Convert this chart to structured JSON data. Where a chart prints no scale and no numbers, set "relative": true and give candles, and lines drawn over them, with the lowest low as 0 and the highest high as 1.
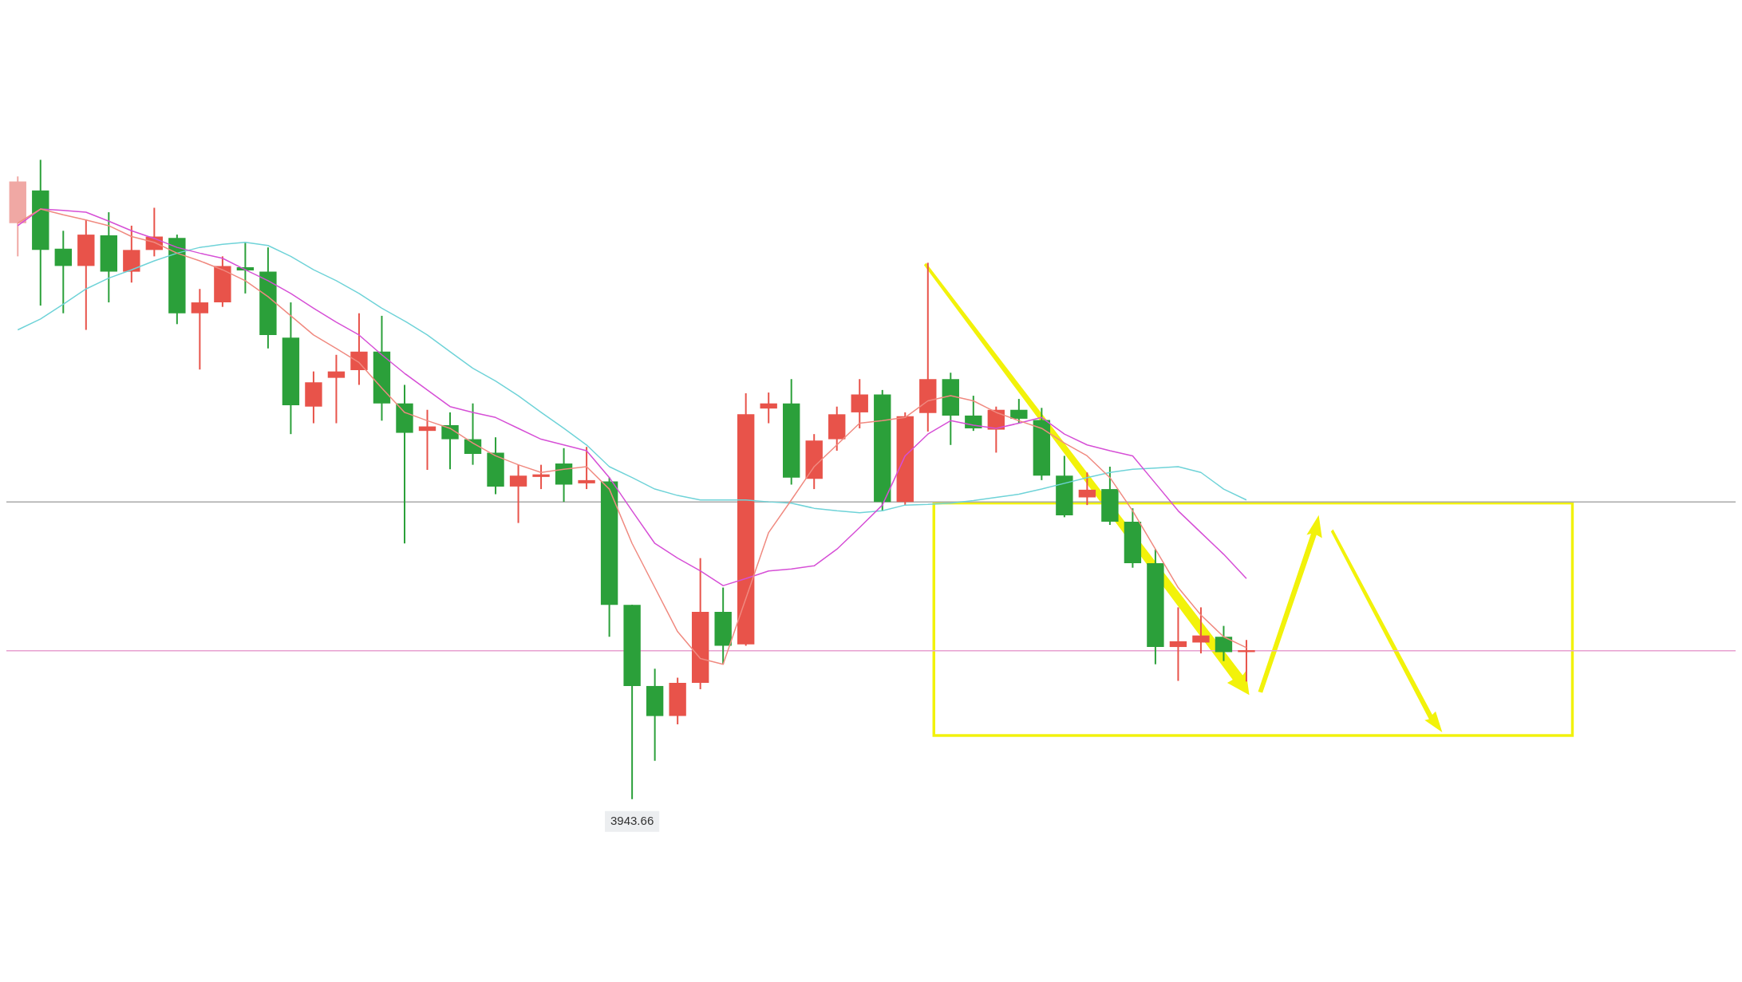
{
  "chart_data": {
    "type": "candlestick",
    "relative": true,
    "categories": [
      null,
      null,
      null,
      null,
      null,
      null,
      null,
      null,
      null,
      null,
      null,
      null,
      null,
      null,
      null,
      null,
      null,
      null,
      null,
      null,
      null,
      null,
      null,
      null,
      null,
      null,
      null,
      null,
      null,
      null,
      null,
      null,
      null,
      null,
      null,
      null,
      null,
      null,
      null,
      null,
      null,
      null,
      null,
      null,
      null,
      null,
      null,
      null,
      null,
      null,
      null,
      null,
      null,
      null,
      null
    ],
    "ohlc": [
      [
        0.901,
        0.974,
        0.849,
        0.966
      ],
      [
        0.952,
        1,
        0.772,
        0.859
      ],
      [
        0.861,
        0.889,
        0.76,
        0.834
      ],
      [
        0.834,
        0.906,
        0.734,
        0.883
      ],
      [
        0.882,
        0.918,
        0.777,
        0.825
      ],
      [
        0.825,
        0.897,
        0.808,
        0.859
      ],
      [
        0.859,
        0.925,
        0.849,
        0.88
      ],
      [
        0.878,
        0.883,
        0.743,
        0.76
      ],
      [
        0.76,
        0.798,
        0.672,
        0.777
      ],
      [
        0.777,
        0.849,
        0.77,
        0.834
      ],
      [
        0.832,
        0.871,
        0.791,
        0.827
      ],
      [
        0.825,
        0.863,
        0.705,
        0.726
      ],
      [
        0.722,
        0.777,
        0.571,
        0.616
      ],
      [
        0.614,
        0.669,
        0.588,
        0.652
      ],
      [
        0.659,
        0.695,
        0.588,
        0.669
      ],
      [
        0.671,
        0.76,
        0.648,
        0.7
      ],
      [
        0.7,
        0.756,
        0.592,
        0.619
      ],
      [
        0.619,
        0.648,
        0.4,
        0.573
      ],
      [
        0.576,
        0.609,
        0.515,
        0.583
      ],
      [
        0.585,
        0.605,
        0.516,
        0.563
      ],
      [
        0.563,
        0.619,
        0.523,
        0.54
      ],
      [
        0.542,
        0.566,
        0.477,
        0.489
      ],
      [
        0.489,
        0.523,
        0.432,
        0.506
      ],
      [
        0.504,
        0.523,
        0.485,
        0.508
      ],
      [
        0.525,
        0.549,
        0.465,
        0.492
      ],
      [
        0.494,
        0.551,
        0.485,
        0.499
      ],
      [
        0.497,
        0.503,
        0.254,
        0.304
      ],
      [
        0.304,
        0.304,
        0,
        0.177
      ],
      [
        0.177,
        0.204,
        0.06,
        0.13
      ],
      [
        0.13,
        0.19,
        0.117,
        0.182
      ],
      [
        0.182,
        0.377,
        0.172,
        0.293
      ],
      [
        0.293,
        0.331,
        0.211,
        0.24
      ],
      [
        0.242,
        0.635,
        0.24,
        0.602
      ],
      [
        0.611,
        0.636,
        0.588,
        0.619
      ],
      [
        0.619,
        0.657,
        0.492,
        0.503
      ],
      [
        0.501,
        0.571,
        0.485,
        0.561
      ],
      [
        0.563,
        0.614,
        0.545,
        0.602
      ],
      [
        0.605,
        0.657,
        0.58,
        0.633
      ],
      [
        0.633,
        0.64,
        0.451,
        0.465
      ],
      [
        0.465,
        0.605,
        0.46,
        0.599
      ],
      [
        0.604,
        0.839,
        0.575,
        0.657
      ],
      [
        0.657,
        0.667,
        0.554,
        0.6
      ],
      [
        0.6,
        0.631,
        0.576,
        0.58
      ],
      [
        0.578,
        0.614,
        0.542,
        0.609
      ],
      [
        0.609,
        0.626,
        0.588,
        0.595
      ],
      [
        0.593,
        0.612,
        0.499,
        0.506
      ],
      [
        0.506,
        0.537,
        0.441,
        0.444
      ],
      [
        0.472,
        0.511,
        0.46,
        0.484
      ],
      [
        0.485,
        0.52,
        0.429,
        0.434
      ],
      [
        0.434,
        0.455,
        0.362,
        0.369
      ],
      [
        0.369,
        0.391,
        0.211,
        0.238
      ],
      [
        0.238,
        0.3,
        0.185,
        0.247
      ],
      [
        0.245,
        0.3,
        0.228,
        0.256
      ],
      [
        0.254,
        0.271,
        0.216,
        0.23
      ],
      [
        0.23,
        0.249,
        0.184,
        0.233
      ]
    ],
    "colors": [
      "#f0a8a4",
      "#2ba03a",
      "#2ba03a",
      "#e8534a",
      "#2ba03a",
      "#e8534a",
      "#e8534a",
      "#2ba03a",
      "#e8534a",
      "#e8534a",
      "#2ba03a",
      "#2ba03a",
      "#2ba03a",
      "#e8534a",
      "#e8534a",
      "#e8534a",
      "#2ba03a",
      "#2ba03a",
      "#e8534a",
      "#2ba03a",
      "#2ba03a",
      "#2ba03a",
      "#e8534a",
      "#e8534a",
      "#2ba03a",
      "#e8534a",
      "#2ba03a",
      "#2ba03a",
      "#2ba03a",
      "#e8534a",
      "#e8534a",
      "#2ba03a",
      "#e8534a",
      "#e8534a",
      "#2ba03a",
      "#e8534a",
      "#e8534a",
      "#e8534a",
      "#2ba03a",
      "#e8534a",
      "#e8534a",
      "#2ba03a",
      "#2ba03a",
      "#e8534a",
      "#2ba03a",
      "#2ba03a",
      "#2ba03a",
      "#e8534a",
      "#2ba03a",
      "#2ba03a",
      "#2ba03a",
      "#e8534a",
      "#e8534a",
      "#2ba03a",
      "#e8534a"
    ],
    "series": [
      {
        "type": "line",
        "color": "#f08a80",
        "values": [
          0.901,
          0.923,
          0.914,
          0.906,
          0.897,
          0.88,
          0.871,
          0.854,
          0.842,
          0.828,
          0.811,
          0.786,
          0.756,
          0.726,
          0.705,
          0.683,
          0.643,
          0.605,
          0.592,
          0.58,
          0.557,
          0.537,
          0.523,
          0.511,
          0.516,
          0.52,
          0.485,
          0.4,
          0.331,
          0.262,
          0.22,
          0.211,
          0.314,
          0.417,
          0.468,
          0.52,
          0.554,
          0.588,
          0.592,
          0.597,
          0.623,
          0.631,
          0.623,
          0.605,
          0.592,
          0.58,
          0.557,
          0.537,
          0.503,
          0.451,
          0.391,
          0.331,
          0.288,
          0.254,
          0.237
        ]
      },
      {
        "type": "line",
        "color": "#d64fd6",
        "values": [
          0.897,
          0.923,
          0.921,
          0.918,
          0.904,
          0.889,
          0.877,
          0.863,
          0.854,
          0.846,
          0.828,
          0.811,
          0.791,
          0.768,
          0.746,
          0.726,
          0.695,
          0.666,
          0.64,
          0.614,
          0.605,
          0.597,
          0.58,
          0.563,
          0.554,
          0.545,
          0.503,
          0.451,
          0.4,
          0.377,
          0.357,
          0.334,
          0.345,
          0.357,
          0.36,
          0.365,
          0.391,
          0.425,
          0.46,
          0.537,
          0.571,
          0.592,
          0.585,
          0.58,
          0.588,
          0.597,
          0.571,
          0.554,
          0.545,
          0.537,
          0.494,
          0.451,
          0.417,
          0.383,
          0.345
        ]
      },
      {
        "type": "line",
        "color": "#6fd3d8",
        "values": [
          0.734,
          0.751,
          0.774,
          0.798,
          0.815,
          0.828,
          0.842,
          0.854,
          0.863,
          0.868,
          0.871,
          0.866,
          0.849,
          0.828,
          0.811,
          0.791,
          0.768,
          0.748,
          0.726,
          0.7,
          0.674,
          0.654,
          0.631,
          0.605,
          0.58,
          0.554,
          0.52,
          0.503,
          0.485,
          0.475,
          0.468,
          0.468,
          0.468,
          0.465,
          0.463,
          0.455,
          0.451,
          0.448,
          0.451,
          0.46,
          0.461,
          0.463,
          0.467,
          0.472,
          0.477,
          0.485,
          0.494,
          0.503,
          0.511,
          0.516,
          0.518,
          0.52,
          0.511,
          0.485,
          0.468
        ]
      }
    ],
    "ref_lines": [
      {
        "axis": "y",
        "value": 0.465,
        "color": "#aaaaaa"
      },
      {
        "axis": "y",
        "value": 0.232,
        "color": "#e8a0d0"
      }
    ],
    "annotations": [
      {
        "text": "3943.66",
        "y": 0
      }
    ]
  }
}
